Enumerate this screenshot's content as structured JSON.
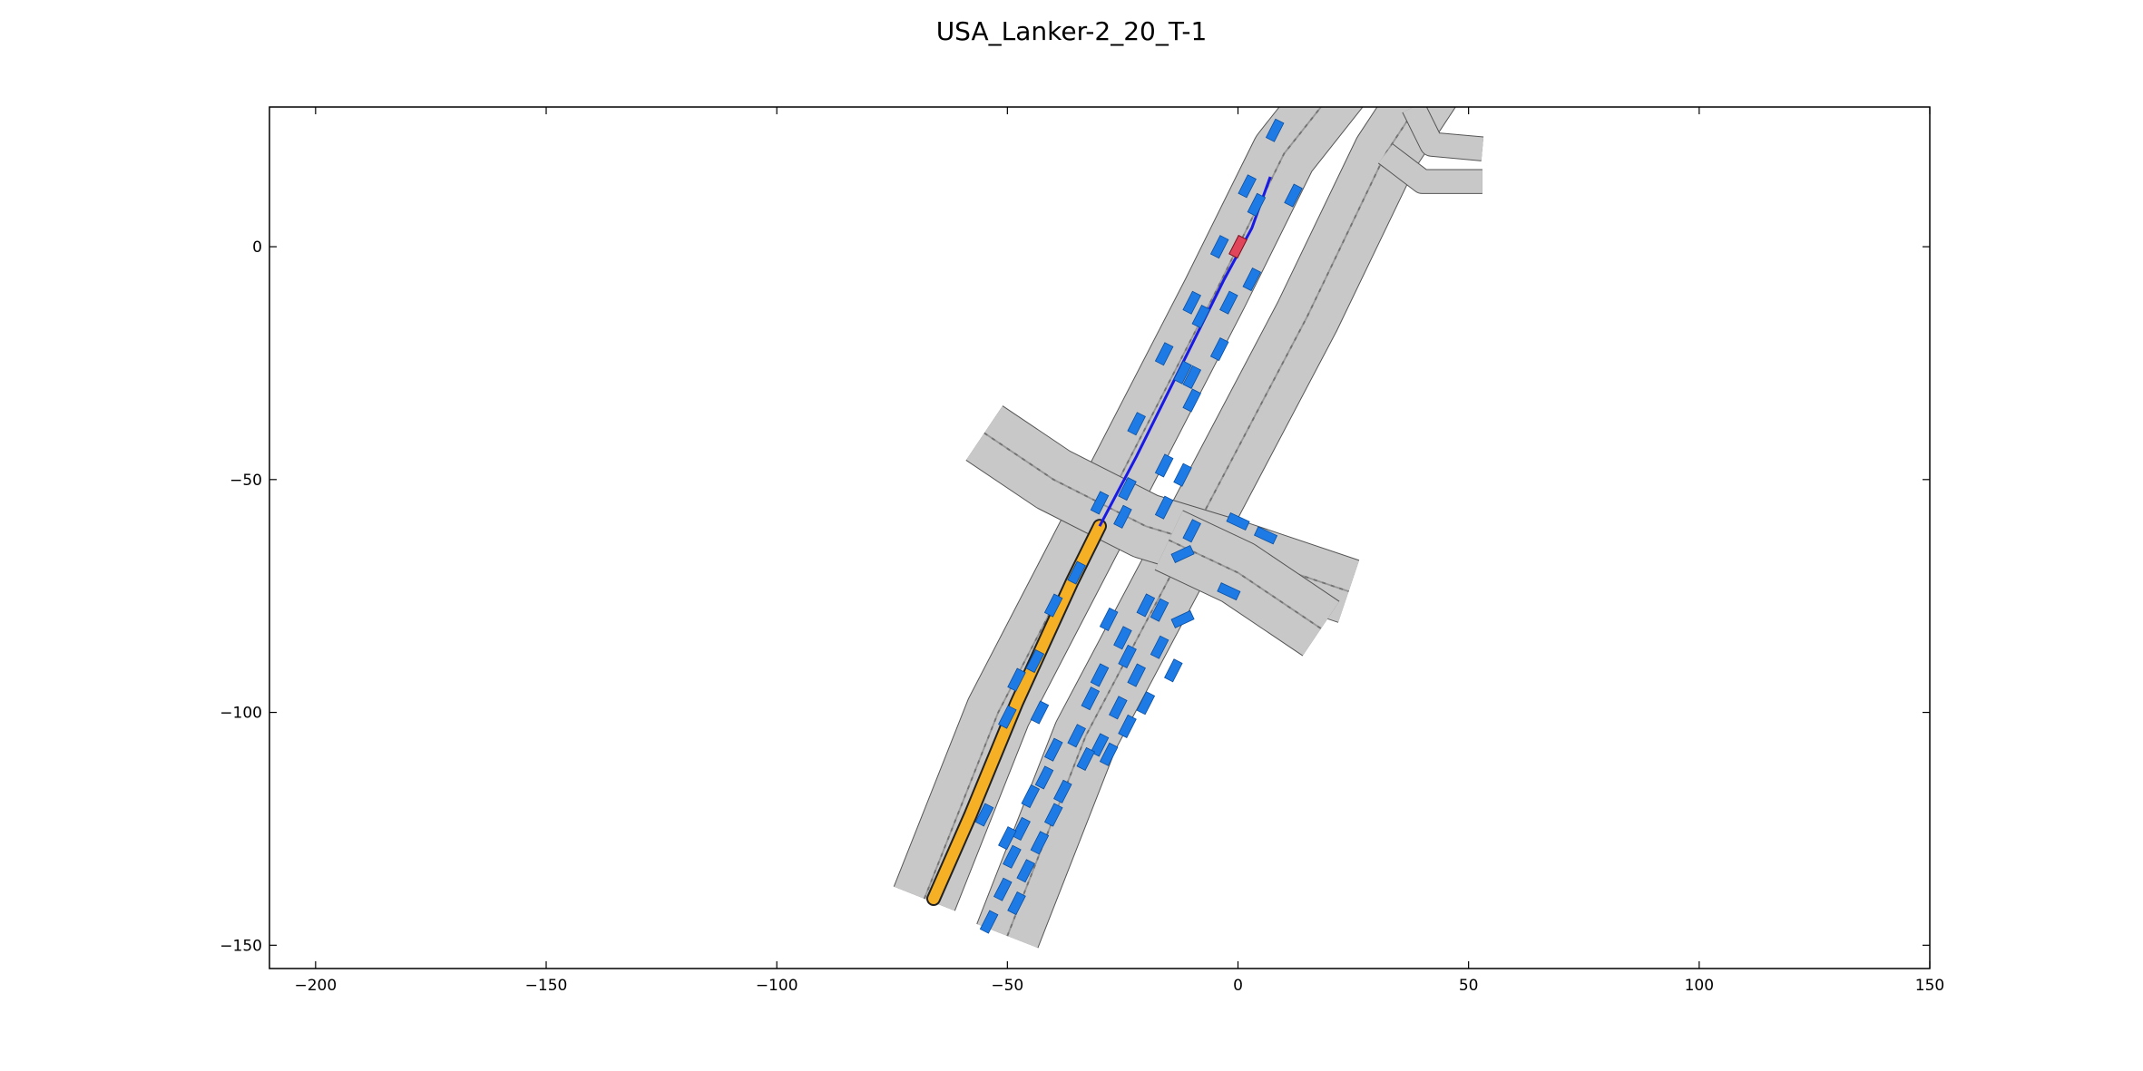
{
  "title": "USA_Lanker-2_20_T-1",
  "chart_data": {
    "type": "scatter",
    "title": "USA_Lanker-2_20_T-1",
    "xlabel": "",
    "ylabel": "",
    "xlim": [
      -210,
      150
    ],
    "ylim": [
      -155,
      30
    ],
    "x_ticks": [
      -200,
      -150,
      -100,
      -50,
      0,
      50,
      100,
      150
    ],
    "y_ticks": [
      0,
      -50,
      -100,
      -150
    ],
    "x_tick_labels": [
      "−200",
      "−150",
      "−100",
      "−50",
      "0",
      "50",
      "100",
      "150"
    ],
    "y_tick_labels": [
      "0",
      "−50",
      "−100",
      "−150"
    ],
    "grid": false,
    "colors": {
      "road": "#c8c8c8",
      "road_edge": "#555555",
      "vehicle": "#1e7be6",
      "ego_vehicle": "#e0455c",
      "planned_path": "#1a1ae6",
      "goal_region": "#f5b025"
    },
    "roads": [
      {
        "id": "main-nb",
        "points": [
          [
            -68,
            -140
          ],
          [
            -52,
            -100
          ],
          [
            -30,
            -58
          ],
          [
            -5,
            -10
          ],
          [
            10,
            20
          ],
          [
            22,
            35
          ]
        ],
        "lanes": 4,
        "width": 14
      },
      {
        "id": "main-sb",
        "points": [
          [
            -50,
            -148
          ],
          [
            -33,
            -105
          ],
          [
            -10,
            -62
          ],
          [
            15,
            -15
          ],
          [
            32,
            20
          ],
          [
            42,
            35
          ]
        ],
        "lanes": 4,
        "width": 14
      },
      {
        "id": "cross-west",
        "points": [
          [
            -55,
            -40
          ],
          [
            -40,
            -50
          ],
          [
            -20,
            -60
          ],
          [
            0,
            -66
          ],
          [
            24,
            -74
          ]
        ],
        "lanes": 4,
        "width": 14
      },
      {
        "id": "cross-east",
        "points": [
          [
            -15,
            -63
          ],
          [
            0,
            -70
          ],
          [
            18,
            -82
          ]
        ],
        "lanes": 4,
        "width": 14
      },
      {
        "id": "ramp-ne",
        "points": [
          [
            32,
            20
          ],
          [
            40,
            14
          ],
          [
            53,
            14
          ]
        ],
        "lanes": 1,
        "width": 5
      },
      {
        "id": "ramp-ne-2",
        "points": [
          [
            38,
            30
          ],
          [
            42,
            22
          ],
          [
            53,
            21
          ]
        ],
        "lanes": 1,
        "width": 5
      }
    ],
    "goal_path": [
      [
        -66,
        -140
      ],
      [
        -58,
        -122
      ],
      [
        -48,
        -98
      ],
      [
        -42,
        -85
      ],
      [
        -36,
        -72
      ],
      [
        -30,
        -60
      ]
    ],
    "planned_path": [
      [
        -30,
        -60
      ],
      [
        -22,
        -45
      ],
      [
        -12,
        -25
      ],
      [
        -3,
        -7
      ],
      [
        3,
        4
      ],
      [
        7,
        15
      ]
    ],
    "ego": {
      "x": 0,
      "y": 0,
      "angle": 63
    },
    "vehicles": [
      {
        "x": 8,
        "y": 25,
        "a": 63
      },
      {
        "x": 2,
        "y": 13,
        "a": 63
      },
      {
        "x": 4,
        "y": 9,
        "a": 63
      },
      {
        "x": 12,
        "y": 11,
        "a": 63
      },
      {
        "x": -4,
        "y": 0,
        "a": 63
      },
      {
        "x": 3,
        "y": -7,
        "a": 63
      },
      {
        "x": -10,
        "y": -12,
        "a": 63
      },
      {
        "x": -8,
        "y": -15,
        "a": 63
      },
      {
        "x": -2,
        "y": -12,
        "a": 63
      },
      {
        "x": -16,
        "y": -23,
        "a": 63
      },
      {
        "x": -12,
        "y": -27,
        "a": 63
      },
      {
        "x": -10,
        "y": -28,
        "a": 63
      },
      {
        "x": -4,
        "y": -22,
        "a": 63
      },
      {
        "x": -10,
        "y": -33,
        "a": 63
      },
      {
        "x": -22,
        "y": -38,
        "a": 63
      },
      {
        "x": -16,
        "y": -47,
        "a": 63
      },
      {
        "x": -12,
        "y": -49,
        "a": 63
      },
      {
        "x": -30,
        "y": -55,
        "a": 63
      },
      {
        "x": -24,
        "y": -52,
        "a": 63
      },
      {
        "x": -25,
        "y": -58,
        "a": 63
      },
      {
        "x": -16,
        "y": -56,
        "a": 63
      },
      {
        "x": -10,
        "y": -61,
        "a": 63
      },
      {
        "x": -12,
        "y": -66,
        "a": 25
      },
      {
        "x": 0,
        "y": -59,
        "a": -25
      },
      {
        "x": 6,
        "y": -62,
        "a": -25
      },
      {
        "x": -2,
        "y": -74,
        "a": -25
      },
      {
        "x": -12,
        "y": -80,
        "a": 25
      },
      {
        "x": -35,
        "y": -70,
        "a": 63
      },
      {
        "x": -40,
        "y": -77,
        "a": 63
      },
      {
        "x": -28,
        "y": -80,
        "a": 63
      },
      {
        "x": -25,
        "y": -84,
        "a": 63
      },
      {
        "x": -20,
        "y": -77,
        "a": 63
      },
      {
        "x": -17,
        "y": -78,
        "a": 63
      },
      {
        "x": -24,
        "y": -88,
        "a": 63
      },
      {
        "x": -22,
        "y": -92,
        "a": 63
      },
      {
        "x": -17,
        "y": -86,
        "a": 63
      },
      {
        "x": -14,
        "y": -91,
        "a": 63
      },
      {
        "x": -30,
        "y": -92,
        "a": 63
      },
      {
        "x": -32,
        "y": -97,
        "a": 63
      },
      {
        "x": -26,
        "y": -99,
        "a": 63
      },
      {
        "x": -20,
        "y": -98,
        "a": 63
      },
      {
        "x": -24,
        "y": -103,
        "a": 63
      },
      {
        "x": -44,
        "y": -89,
        "a": 63
      },
      {
        "x": -48,
        "y": -93,
        "a": 63
      },
      {
        "x": -43,
        "y": -100,
        "a": 63
      },
      {
        "x": -50,
        "y": -101,
        "a": 63
      },
      {
        "x": -35,
        "y": -105,
        "a": 63
      },
      {
        "x": -30,
        "y": -107,
        "a": 63
      },
      {
        "x": -40,
        "y": -108,
        "a": 63
      },
      {
        "x": -33,
        "y": -110,
        "a": 63
      },
      {
        "x": -28,
        "y": -109,
        "a": 63
      },
      {
        "x": -42,
        "y": -114,
        "a": 63
      },
      {
        "x": -38,
        "y": -117,
        "a": 63
      },
      {
        "x": -45,
        "y": -118,
        "a": 63
      },
      {
        "x": -40,
        "y": -122,
        "a": 63
      },
      {
        "x": -47,
        "y": -125,
        "a": 63
      },
      {
        "x": -43,
        "y": -128,
        "a": 63
      },
      {
        "x": -49,
        "y": -131,
        "a": 63
      },
      {
        "x": -46,
        "y": -134,
        "a": 63
      },
      {
        "x": -51,
        "y": -138,
        "a": 63
      },
      {
        "x": -48,
        "y": -141,
        "a": 63
      },
      {
        "x": -54,
        "y": -145,
        "a": 63
      },
      {
        "x": -55,
        "y": -122,
        "a": 63
      },
      {
        "x": -50,
        "y": -127,
        "a": 63
      }
    ]
  }
}
